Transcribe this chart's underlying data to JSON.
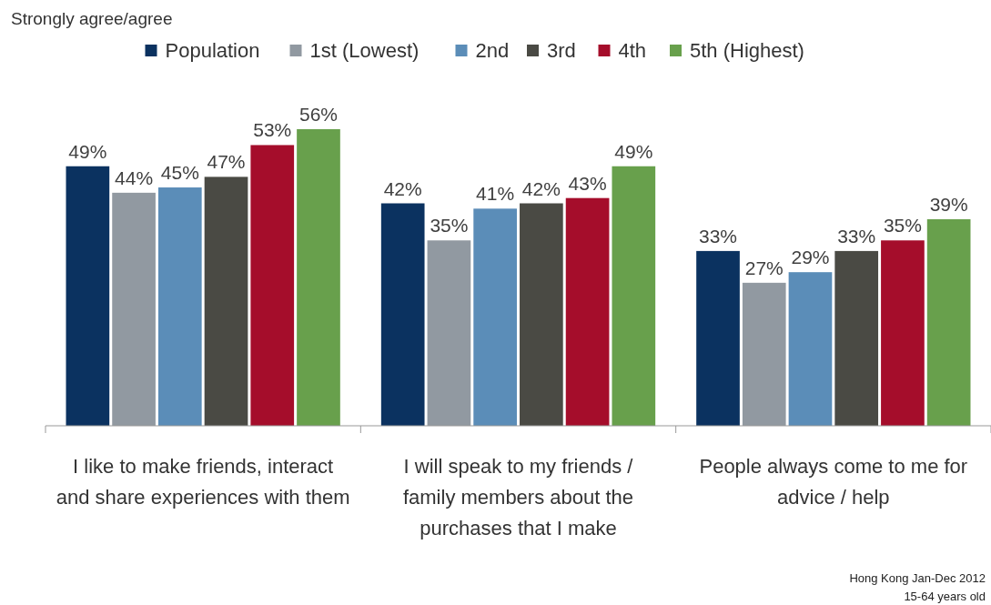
{
  "chart_data": {
    "type": "bar",
    "categories": [
      "I like to make friends, interact and share experiences with them",
      "I will speak to my friends / family members about the purchases that I make",
      "People always come to me for advice / help"
    ],
    "series": [
      {
        "name": "Population",
        "color": "#0b3260",
        "values": [
          49,
          42,
          33
        ],
        "value_labels": [
          "49%",
          "42%",
          "33%"
        ]
      },
      {
        "name": "1st (Lowest)",
        "color": "#9199a1",
        "values": [
          44,
          35,
          27
        ],
        "value_labels": [
          "44%",
          "35%",
          "27%"
        ]
      },
      {
        "name": "2nd",
        "color": "#5b8db8",
        "values": [
          45,
          41,
          29
        ],
        "value_labels": [
          "45%",
          "41%",
          "29%"
        ]
      },
      {
        "name": "3rd",
        "color": "#4a4a44",
        "values": [
          47,
          42,
          33
        ],
        "value_labels": [
          "47%",
          "42%",
          "33%"
        ]
      },
      {
        "name": "4th",
        "color": "#a50d2b",
        "values": [
          53,
          43,
          35
        ],
        "value_labels": [
          "53%",
          "43%",
          "35%"
        ]
      },
      {
        "name": "5th (Highest)",
        "color": "#68a04c",
        "values": [
          56,
          49,
          39
        ],
        "value_labels": [
          "56%",
          "49%",
          "39%"
        ]
      }
    ],
    "legend": "top",
    "annotations": [
      "Strongly agree/agree",
      "Hong Kong Jan-Dec 2012",
      "15-64 years old"
    ]
  }
}
